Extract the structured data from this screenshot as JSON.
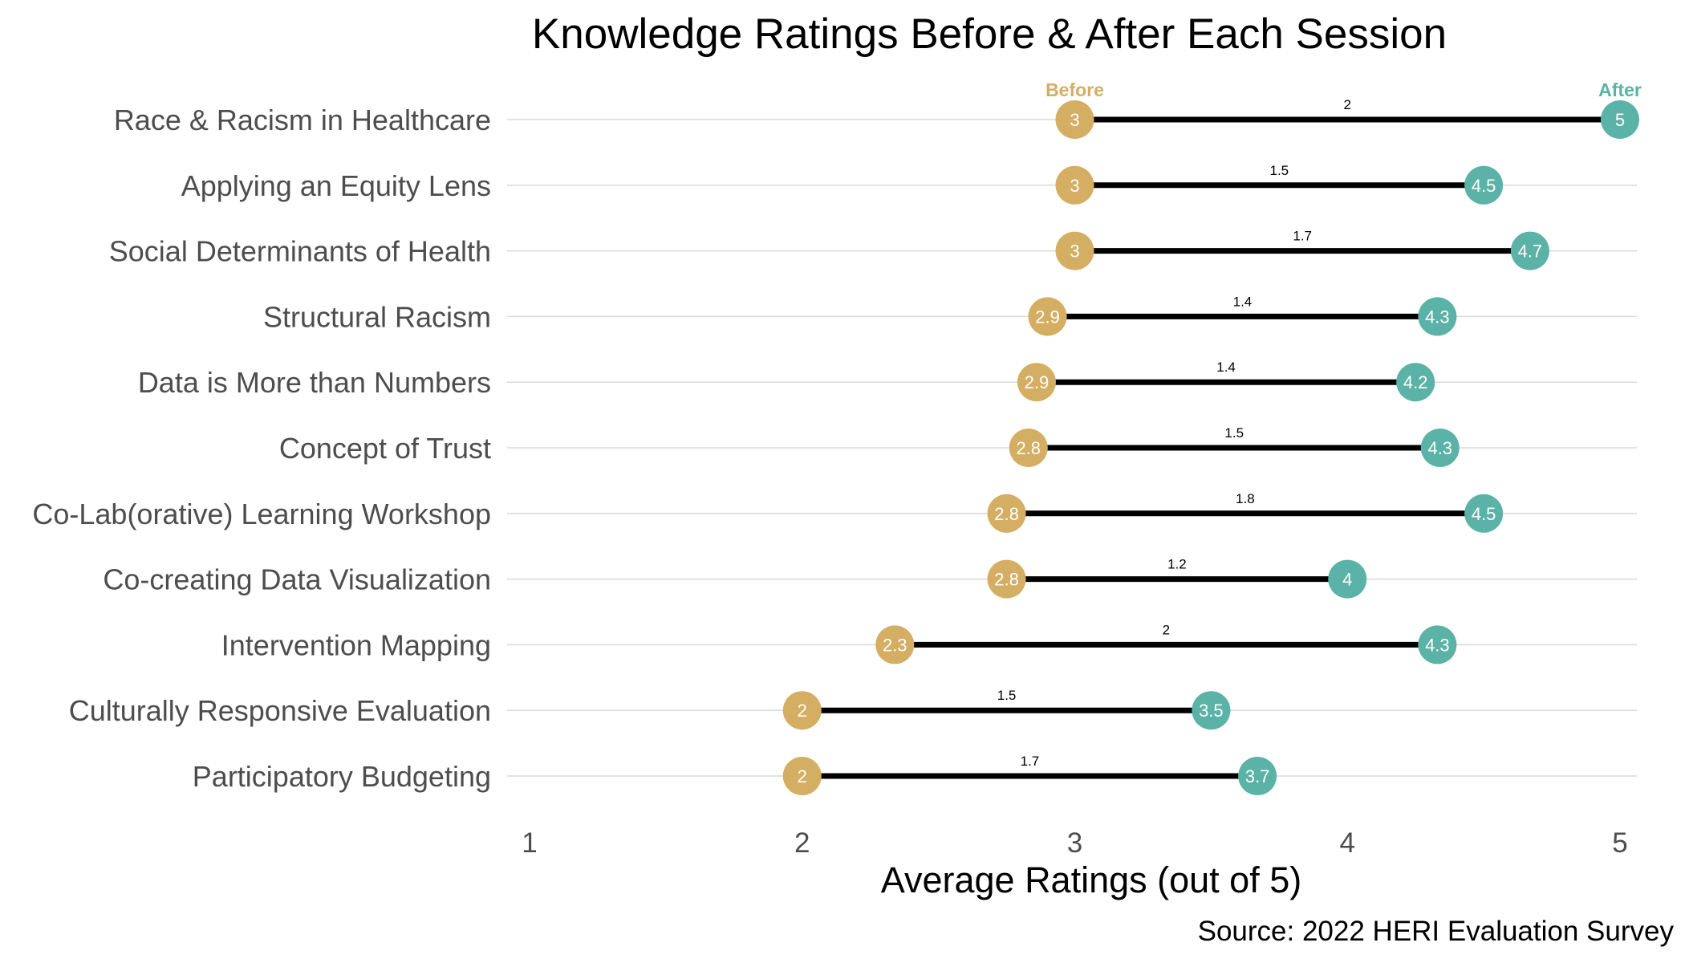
{
  "chart_data": {
    "type": "dumbbell",
    "title": "Knowledge Ratings Before & After Each Session",
    "xlabel": "Average Ratings (out of 5)",
    "ylabel": "",
    "caption": "Source: 2022 HERI Evaluation Survey",
    "xlim": [
      1,
      5
    ],
    "xticks": [
      "1",
      "2",
      "3",
      "4",
      "5"
    ],
    "grid": "horizontal",
    "legend": "none",
    "series_headers": {
      "before": "Before",
      "after": "After"
    },
    "colors": {
      "before": "#d4ae62",
      "after": "#5bb2a6",
      "segment": "#000000",
      "gridline": "#d9d9d9"
    },
    "categories": [
      "Race & Racism in Healthcare",
      "Applying an Equity Lens",
      "Social Determinants of Health",
      "Structural Racism",
      "Data is More than Numbers",
      "Concept of Trust",
      "Co-Lab(orative) Learning Workshop",
      "Co-creating Data Visualization",
      "Intervention Mapping",
      "Culturally Responsive Evaluation",
      "Participatory Budgeting"
    ],
    "series": [
      {
        "name": "Before",
        "values": [
          3,
          3,
          3,
          2.9,
          2.86,
          2.83,
          2.75,
          2.75,
          2.34,
          2,
          2
        ],
        "labels": [
          "3",
          "3",
          "3",
          "2.9",
          "2.9",
          "2.8",
          "2.8",
          "2.8",
          "2.3",
          "2",
          "2"
        ]
      },
      {
        "name": "After",
        "values": [
          5,
          4.5,
          4.67,
          4.33,
          4.25,
          4.34,
          4.5,
          4,
          4.33,
          3.5,
          3.67
        ],
        "labels": [
          "5",
          "4.5",
          "4.7",
          "4.3",
          "4.2",
          "4.3",
          "4.5",
          "4",
          "4.3",
          "3.5",
          "3.7"
        ]
      }
    ],
    "differences": [
      "2",
      "1.5",
      "1.7",
      "1.4",
      "1.4",
      "1.5",
      "1.8",
      "1.2",
      "2",
      "1.5",
      "1.7"
    ]
  }
}
